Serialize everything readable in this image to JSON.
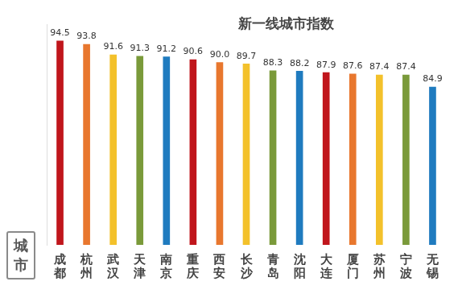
{
  "chart_data": {
    "type": "bar",
    "title": "新一线城市指数",
    "x_label": "城市",
    "categories": [
      "成都",
      "杭州",
      "武汉",
      "天津",
      "南京",
      "重庆",
      "西安",
      "长沙",
      "青岛",
      "沈阳",
      "大连",
      "厦门",
      "苏州",
      "宁波",
      "无锡"
    ],
    "values": [
      94.5,
      93.8,
      91.6,
      91.3,
      91.2,
      90.6,
      90.0,
      89.7,
      88.3,
      88.2,
      87.9,
      87.6,
      87.4,
      87.4,
      84.9
    ],
    "value_labels": [
      "94.5",
      "93.8",
      "91.6",
      "91.3",
      "91.2",
      "90.6",
      "90.0",
      "89.7",
      "88.3",
      "88.2",
      "87.9",
      "87.6",
      "87.4",
      "87.4",
      "84.9"
    ],
    "colors": [
      "#c0161c",
      "#e8772e",
      "#f3c12b",
      "#7a9a3a",
      "#1f7bbf",
      "#c0161c",
      "#e8772e",
      "#f3c12b",
      "#7a9a3a",
      "#1f7bbf",
      "#c0161c",
      "#e8772e",
      "#f3c12b",
      "#7a9a3a",
      "#1f7bbf"
    ],
    "ylim": [
      52,
      98
    ],
    "grid": false,
    "data_labels": true,
    "tick_labels": "x"
  }
}
